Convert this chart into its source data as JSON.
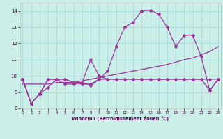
{
  "xlabel": "Windchill (Refroidissement éolien,°C)",
  "bg_color": "#cceee8",
  "grid_color": "#aaddda",
  "line_color": "#993399",
  "xlim": [
    0,
    23
  ],
  "ylim": [
    8,
    14.5
  ],
  "xticks": [
    0,
    1,
    2,
    3,
    4,
    5,
    6,
    7,
    8,
    9,
    10,
    11,
    12,
    13,
    14,
    15,
    16,
    17,
    18,
    19,
    20,
    21,
    22,
    23
  ],
  "yticks": [
    8,
    9,
    10,
    11,
    12,
    13,
    14
  ],
  "s_peak_x": [
    0,
    1,
    2,
    3,
    4,
    5,
    6,
    7,
    8,
    9,
    10,
    11,
    12,
    13,
    14,
    15,
    16,
    17,
    18,
    19,
    20,
    21,
    22,
    23
  ],
  "s_peak_y": [
    9.8,
    8.3,
    8.9,
    9.8,
    9.8,
    9.8,
    9.6,
    9.6,
    9.4,
    9.8,
    10.3,
    11.8,
    13.0,
    13.3,
    14.0,
    14.05,
    13.8,
    13.0,
    11.8,
    12.5,
    12.5,
    11.2,
    9.1,
    9.8
  ],
  "s_zigzag_x": [
    0,
    1,
    2,
    3,
    4,
    5,
    6,
    7,
    8,
    9,
    10,
    11,
    12,
    13,
    14,
    15,
    16,
    17,
    18,
    19,
    20,
    21,
    22,
    23
  ],
  "s_zigzag_y": [
    9.8,
    8.3,
    8.9,
    9.8,
    9.8,
    9.5,
    9.5,
    9.6,
    11.0,
    10.0,
    9.8,
    9.8,
    9.8,
    9.8,
    9.8,
    9.8,
    9.8,
    9.8,
    9.8,
    9.8,
    9.8,
    9.8,
    9.1,
    9.8
  ],
  "s_rise_x": [
    0,
    1,
    2,
    3,
    4,
    5,
    6,
    7,
    8,
    9,
    10,
    11,
    12,
    13,
    14,
    15,
    16,
    17,
    18,
    19,
    20,
    21,
    22,
    23
  ],
  "s_rise_y": [
    9.5,
    9.5,
    9.5,
    9.5,
    9.6,
    9.6,
    9.6,
    9.7,
    9.8,
    9.9,
    10.0,
    10.1,
    10.2,
    10.3,
    10.4,
    10.5,
    10.6,
    10.7,
    10.85,
    11.0,
    11.1,
    11.3,
    11.5,
    11.8
  ],
  "s_flat_x": [
    0,
    1,
    2,
    3,
    4,
    5,
    6,
    7,
    8,
    9,
    10,
    11,
    12,
    13,
    14,
    15,
    16,
    17,
    18,
    19,
    20,
    21,
    22,
    23
  ],
  "s_flat_y": [
    9.8,
    8.3,
    8.9,
    9.3,
    9.8,
    9.8,
    9.6,
    9.5,
    9.5,
    9.8,
    9.8,
    9.8,
    9.8,
    9.8,
    9.8,
    9.8,
    9.8,
    9.8,
    9.8,
    9.8,
    9.8,
    9.8,
    9.8,
    9.8
  ]
}
